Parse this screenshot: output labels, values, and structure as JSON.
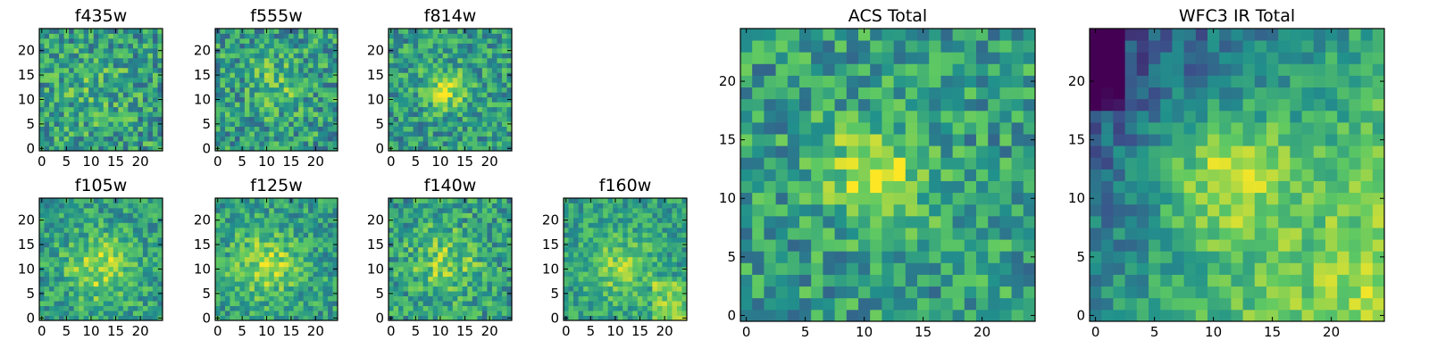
{
  "chart_data": [
    {
      "type": "heatmap",
      "title": "f435w",
      "colormap": "viridis",
      "grid_size": 25,
      "xticks": [
        "0",
        "5",
        "10",
        "15",
        "20"
      ],
      "yticks": [
        "0",
        "5",
        "10",
        "15",
        "20"
      ]
    },
    {
      "type": "heatmap",
      "title": "f555w",
      "colormap": "viridis",
      "grid_size": 25,
      "xticks": [
        "0",
        "5",
        "10",
        "15",
        "20"
      ],
      "yticks": [
        "0",
        "5",
        "10",
        "15",
        "20"
      ]
    },
    {
      "type": "heatmap",
      "title": "f814w",
      "colormap": "viridis",
      "grid_size": 25,
      "xticks": [
        "0",
        "5",
        "10",
        "15",
        "20"
      ],
      "yticks": [
        "0",
        "5",
        "10",
        "15",
        "20"
      ]
    },
    {
      "type": "heatmap",
      "title": "f105w",
      "colormap": "viridis",
      "grid_size": 25,
      "xticks": [
        "0",
        "5",
        "10",
        "15",
        "20"
      ],
      "yticks": [
        "0",
        "5",
        "10",
        "15",
        "20"
      ]
    },
    {
      "type": "heatmap",
      "title": "f125w",
      "colormap": "viridis",
      "grid_size": 25,
      "xticks": [
        "0",
        "5",
        "10",
        "15",
        "20"
      ],
      "yticks": [
        "0",
        "5",
        "10",
        "15",
        "20"
      ]
    },
    {
      "type": "heatmap",
      "title": "f140w",
      "colormap": "viridis",
      "grid_size": 25,
      "xticks": [
        "0",
        "5",
        "10",
        "15",
        "20"
      ],
      "yticks": [
        "0",
        "5",
        "10",
        "15",
        "20"
      ]
    },
    {
      "type": "heatmap",
      "title": "f160w",
      "colormap": "viridis",
      "grid_size": 25,
      "xticks": [
        "0",
        "5",
        "10",
        "15",
        "20"
      ],
      "yticks": [
        "0",
        "5",
        "10",
        "15",
        "20"
      ]
    },
    {
      "type": "heatmap",
      "title": "ACS Total",
      "colormap": "viridis",
      "grid_size": 25,
      "xticks": [
        "0",
        "5",
        "10",
        "15",
        "20"
      ],
      "yticks": [
        "0",
        "5",
        "10",
        "15",
        "20"
      ]
    },
    {
      "type": "heatmap",
      "title": "WFC3 IR Total",
      "colormap": "viridis",
      "grid_size": 25,
      "xticks": [
        "0",
        "5",
        "10",
        "15",
        "20"
      ],
      "yticks": [
        "0",
        "5",
        "10",
        "15",
        "20"
      ]
    }
  ]
}
